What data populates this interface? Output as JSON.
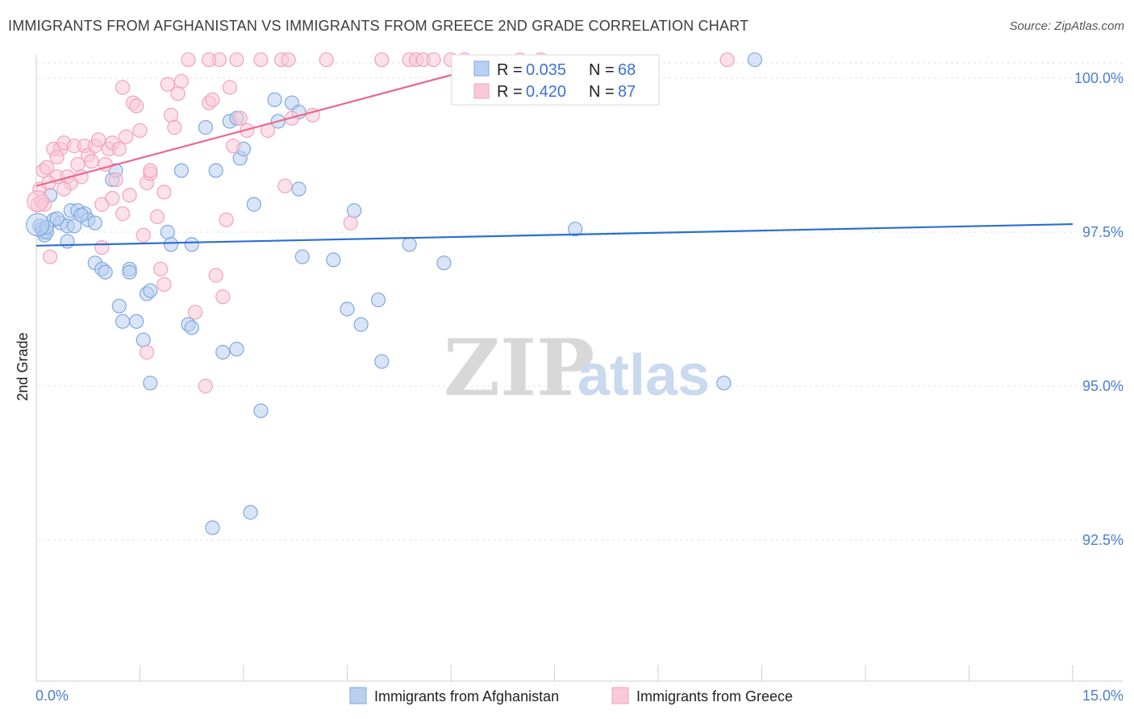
{
  "header": {
    "title": "IMMIGRANTS FROM AFGHANISTAN VS IMMIGRANTS FROM GREECE 2ND GRADE CORRELATION CHART",
    "source": "Source: ZipAtlas.com"
  },
  "watermark": {
    "zip": "ZIP",
    "atlas": "atlas"
  },
  "chart_data": {
    "type": "scatter",
    "title": "IMMIGRANTS FROM AFGHANISTAN VS IMMIGRANTS FROM GREECE 2ND GRADE CORRELATION CHART",
    "xlabel": "",
    "ylabel": "2nd Grade",
    "xlim": [
      0.0,
      15.0
    ],
    "ylim": [
      90.2,
      100.4
    ],
    "x_tick_labels": [
      "0.0%",
      "15.0%"
    ],
    "y_ticks": [
      {
        "value": 100.0,
        "label": "100.0%"
      },
      {
        "value": 97.5,
        "label": "97.5%"
      },
      {
        "value": 95.0,
        "label": "95.0%"
      },
      {
        "value": 92.5,
        "label": "92.5%"
      }
    ],
    "legend": [
      {
        "label": "R = ",
        "r": "0.035",
        "n_label": "N = ",
        "n": "68"
      },
      {
        "label": "R = ",
        "r": "0.420",
        "n_label": "N = ",
        "n": "87"
      }
    ],
    "series": [
      {
        "name": "Immigrants from Afghanistan",
        "color": "#7fa8e0",
        "fill": "#b9d0f0",
        "line_color": "#2a6fd0",
        "trend": {
          "x0": 0.0,
          "y0": 97.28,
          "x1": 15.0,
          "y1": 97.63
        },
        "points": [
          [
            0.05,
            97.6
          ],
          [
            0.08,
            97.55
          ],
          [
            0.1,
            97.5
          ],
          [
            0.12,
            97.45
          ],
          [
            0.15,
            97.5
          ],
          [
            0.2,
            98.1
          ],
          [
            0.25,
            97.7
          ],
          [
            0.35,
            97.65
          ],
          [
            0.45,
            97.6
          ],
          [
            0.45,
            97.35
          ],
          [
            0.5,
            97.85
          ],
          [
            0.6,
            97.85
          ],
          [
            0.7,
            97.8
          ],
          [
            0.75,
            97.7
          ],
          [
            0.85,
            97.65
          ],
          [
            0.85,
            97.0
          ],
          [
            0.95,
            96.9
          ],
          [
            1.0,
            96.85
          ],
          [
            1.1,
            98.35
          ],
          [
            1.15,
            98.5
          ],
          [
            1.2,
            96.3
          ],
          [
            1.25,
            96.05
          ],
          [
            1.35,
            96.9
          ],
          [
            1.35,
            96.85
          ],
          [
            1.45,
            96.05
          ],
          [
            1.55,
            95.75
          ],
          [
            1.6,
            96.5
          ],
          [
            1.65,
            96.55
          ],
          [
            1.65,
            95.05
          ],
          [
            1.9,
            97.5
          ],
          [
            1.95,
            97.3
          ],
          [
            2.1,
            98.5
          ],
          [
            2.2,
            96.0
          ],
          [
            2.25,
            95.95
          ],
          [
            2.25,
            97.3
          ],
          [
            2.45,
            99.2
          ],
          [
            2.55,
            92.7
          ],
          [
            2.6,
            98.5
          ],
          [
            2.7,
            95.55
          ],
          [
            2.8,
            99.3
          ],
          [
            2.9,
            99.35
          ],
          [
            2.9,
            95.6
          ],
          [
            2.95,
            98.7
          ],
          [
            3.0,
            98.85
          ],
          [
            3.1,
            92.95
          ],
          [
            3.15,
            97.95
          ],
          [
            3.25,
            94.6
          ],
          [
            3.45,
            99.65
          ],
          [
            3.5,
            99.3
          ],
          [
            3.7,
            99.6
          ],
          [
            3.8,
            99.45
          ],
          [
            3.8,
            98.2
          ],
          [
            3.85,
            97.1
          ],
          [
            4.3,
            97.05
          ],
          [
            4.5,
            96.25
          ],
          [
            4.6,
            97.85
          ],
          [
            4.7,
            96.0
          ],
          [
            4.95,
            96.4
          ],
          [
            5.0,
            95.4
          ],
          [
            5.4,
            97.3
          ],
          [
            5.9,
            97.0
          ],
          [
            7.8,
            97.55
          ],
          [
            9.95,
            95.05
          ],
          [
            10.4,
            100.3
          ],
          [
            0.15,
            97.58
          ],
          [
            0.3,
            97.72
          ],
          [
            0.55,
            97.6
          ],
          [
            0.65,
            97.78
          ]
        ]
      },
      {
        "name": "Immigrants from Greece",
        "color": "#f1a3bc",
        "fill": "#f9c9d8",
        "line_color": "#e8698f",
        "trend": {
          "x0": 0.0,
          "y0": 98.25,
          "x1": 7.0,
          "y1": 100.35
        },
        "points": [
          [
            0.02,
            97.95
          ],
          [
            0.05,
            98.2
          ],
          [
            0.1,
            98.5
          ],
          [
            0.15,
            98.55
          ],
          [
            0.2,
            97.1
          ],
          [
            0.25,
            98.85
          ],
          [
            0.3,
            98.4
          ],
          [
            0.35,
            98.85
          ],
          [
            0.4,
            98.95
          ],
          [
            0.45,
            98.4
          ],
          [
            0.5,
            98.3
          ],
          [
            0.55,
            98.9
          ],
          [
            0.6,
            98.6
          ],
          [
            0.65,
            98.4
          ],
          [
            0.7,
            98.9
          ],
          [
            0.75,
            98.75
          ],
          [
            0.8,
            98.65
          ],
          [
            0.85,
            98.9
          ],
          [
            0.9,
            99.0
          ],
          [
            0.95,
            97.95
          ],
          [
            0.95,
            97.25
          ],
          [
            1.0,
            98.6
          ],
          [
            1.05,
            98.85
          ],
          [
            1.1,
            98.95
          ],
          [
            1.1,
            98.05
          ],
          [
            1.15,
            98.35
          ],
          [
            1.2,
            98.85
          ],
          [
            1.25,
            99.85
          ],
          [
            1.25,
            97.8
          ],
          [
            1.3,
            99.05
          ],
          [
            1.35,
            98.1
          ],
          [
            1.4,
            99.6
          ],
          [
            1.45,
            99.55
          ],
          [
            1.5,
            99.15
          ],
          [
            1.55,
            97.45
          ],
          [
            1.6,
            98.3
          ],
          [
            1.65,
            98.45
          ],
          [
            1.6,
            95.55
          ],
          [
            1.65,
            98.5
          ],
          [
            1.75,
            97.75
          ],
          [
            1.8,
            96.9
          ],
          [
            1.85,
            96.65
          ],
          [
            1.85,
            98.15
          ],
          [
            1.9,
            99.9
          ],
          [
            1.95,
            99.4
          ],
          [
            2.0,
            99.2
          ],
          [
            2.05,
            99.75
          ],
          [
            2.1,
            99.95
          ],
          [
            2.2,
            100.3
          ],
          [
            2.3,
            96.2
          ],
          [
            2.45,
            95.0
          ],
          [
            2.5,
            99.6
          ],
          [
            2.55,
            99.65
          ],
          [
            2.65,
            100.3
          ],
          [
            2.6,
            96.8
          ],
          [
            2.7,
            96.45
          ],
          [
            2.75,
            97.7
          ],
          [
            2.8,
            99.85
          ],
          [
            2.85,
            98.9
          ],
          [
            2.9,
            100.3
          ],
          [
            2.95,
            99.35
          ],
          [
            3.05,
            99.15
          ],
          [
            3.25,
            100.3
          ],
          [
            3.35,
            99.15
          ],
          [
            3.55,
            100.3
          ],
          [
            3.6,
            98.25
          ],
          [
            3.65,
            100.3
          ],
          [
            3.7,
            99.35
          ],
          [
            4.0,
            99.4
          ],
          [
            4.2,
            100.3
          ],
          [
            4.55,
            97.65
          ],
          [
            5.0,
            100.3
          ],
          [
            5.4,
            100.3
          ],
          [
            5.5,
            100.3
          ],
          [
            5.6,
            100.3
          ],
          [
            5.75,
            100.3
          ],
          [
            6.0,
            100.3
          ],
          [
            6.2,
            100.3
          ],
          [
            7.0,
            100.3
          ],
          [
            7.3,
            100.3
          ],
          [
            10.0,
            100.3
          ],
          [
            2.5,
            100.3
          ],
          [
            0.18,
            98.3
          ],
          [
            0.08,
            98.0
          ],
          [
            0.12,
            97.95
          ],
          [
            0.4,
            98.2
          ],
          [
            0.3,
            98.72
          ]
        ]
      }
    ]
  }
}
